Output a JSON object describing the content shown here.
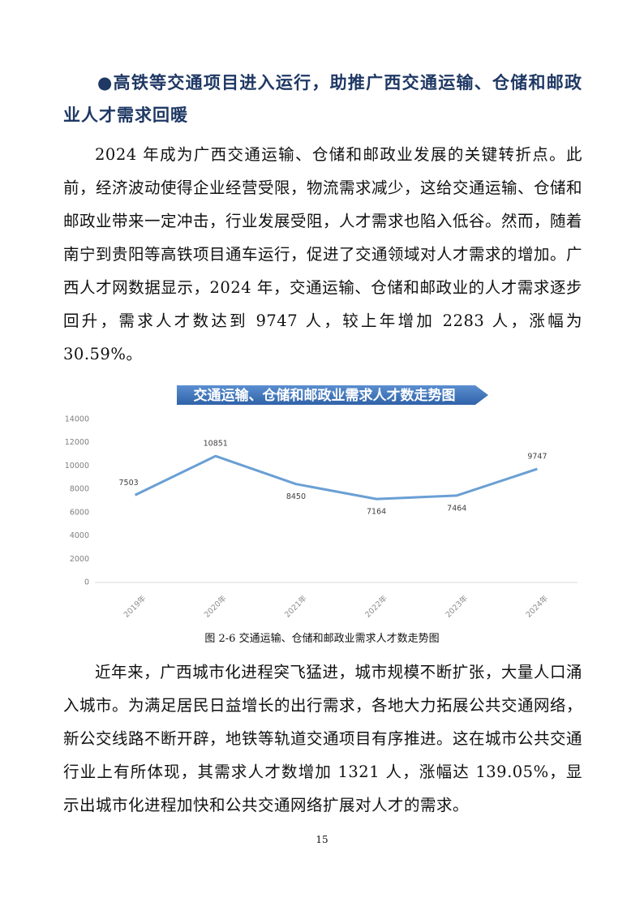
{
  "heading": "●高铁等交通项目进入运行，助推广西交通运输、仓储和邮政业人才需求回暖",
  "paragraphs": [
    "2024 年成为广西交通运输、仓储和邮政业发展的关键转折点。此前，经济波动使得企业经营受限，物流需求减少，这给交通运输、仓储和邮政业带来一定冲击，行业发展受阻，人才需求也陷入低谷。然而，随着南宁到贵阳等高铁项目通车运行，促进了交通领域对人才需求的增加。广西人才网数据显示，2024 年，交通运输、仓储和邮政业的人才需求逐步回升，需求人才数达到 9747 人，较上年增加 2283 人，涨幅为 30.59%。",
    "近年来，广西城市化进程突飞猛进，城市规模不断扩张，大量人口涌入城市。为满足居民日益增长的出行需求，各地大力拓展公共交通网络，新公交线路不断开辟，地铁等轨道交通项目有序推进。这在城市公共交通行业上有所体现，其需求人才数增加 1321 人，涨幅达 139.05%，显示出城市化进程加快和公共交通网络扩展对人才的需求。"
  ],
  "chart_data": {
    "type": "line",
    "title": "交通运输、仓储和邮政业需求人才数走势图",
    "categories": [
      "2019年",
      "2020年",
      "2021年",
      "2022年",
      "2023年",
      "2024年"
    ],
    "values": [
      7503,
      10851,
      8450,
      7164,
      7464,
      9747
    ],
    "color": "#6a9fd4",
    "ylim": [
      0,
      14000
    ],
    "yticks": [
      0,
      2000,
      4000,
      6000,
      8000,
      10000,
      12000,
      14000
    ],
    "grid": false
  },
  "caption": "图 2-6 交通运输、仓储和邮政业需求人才数走势图",
  "page_number": "15"
}
